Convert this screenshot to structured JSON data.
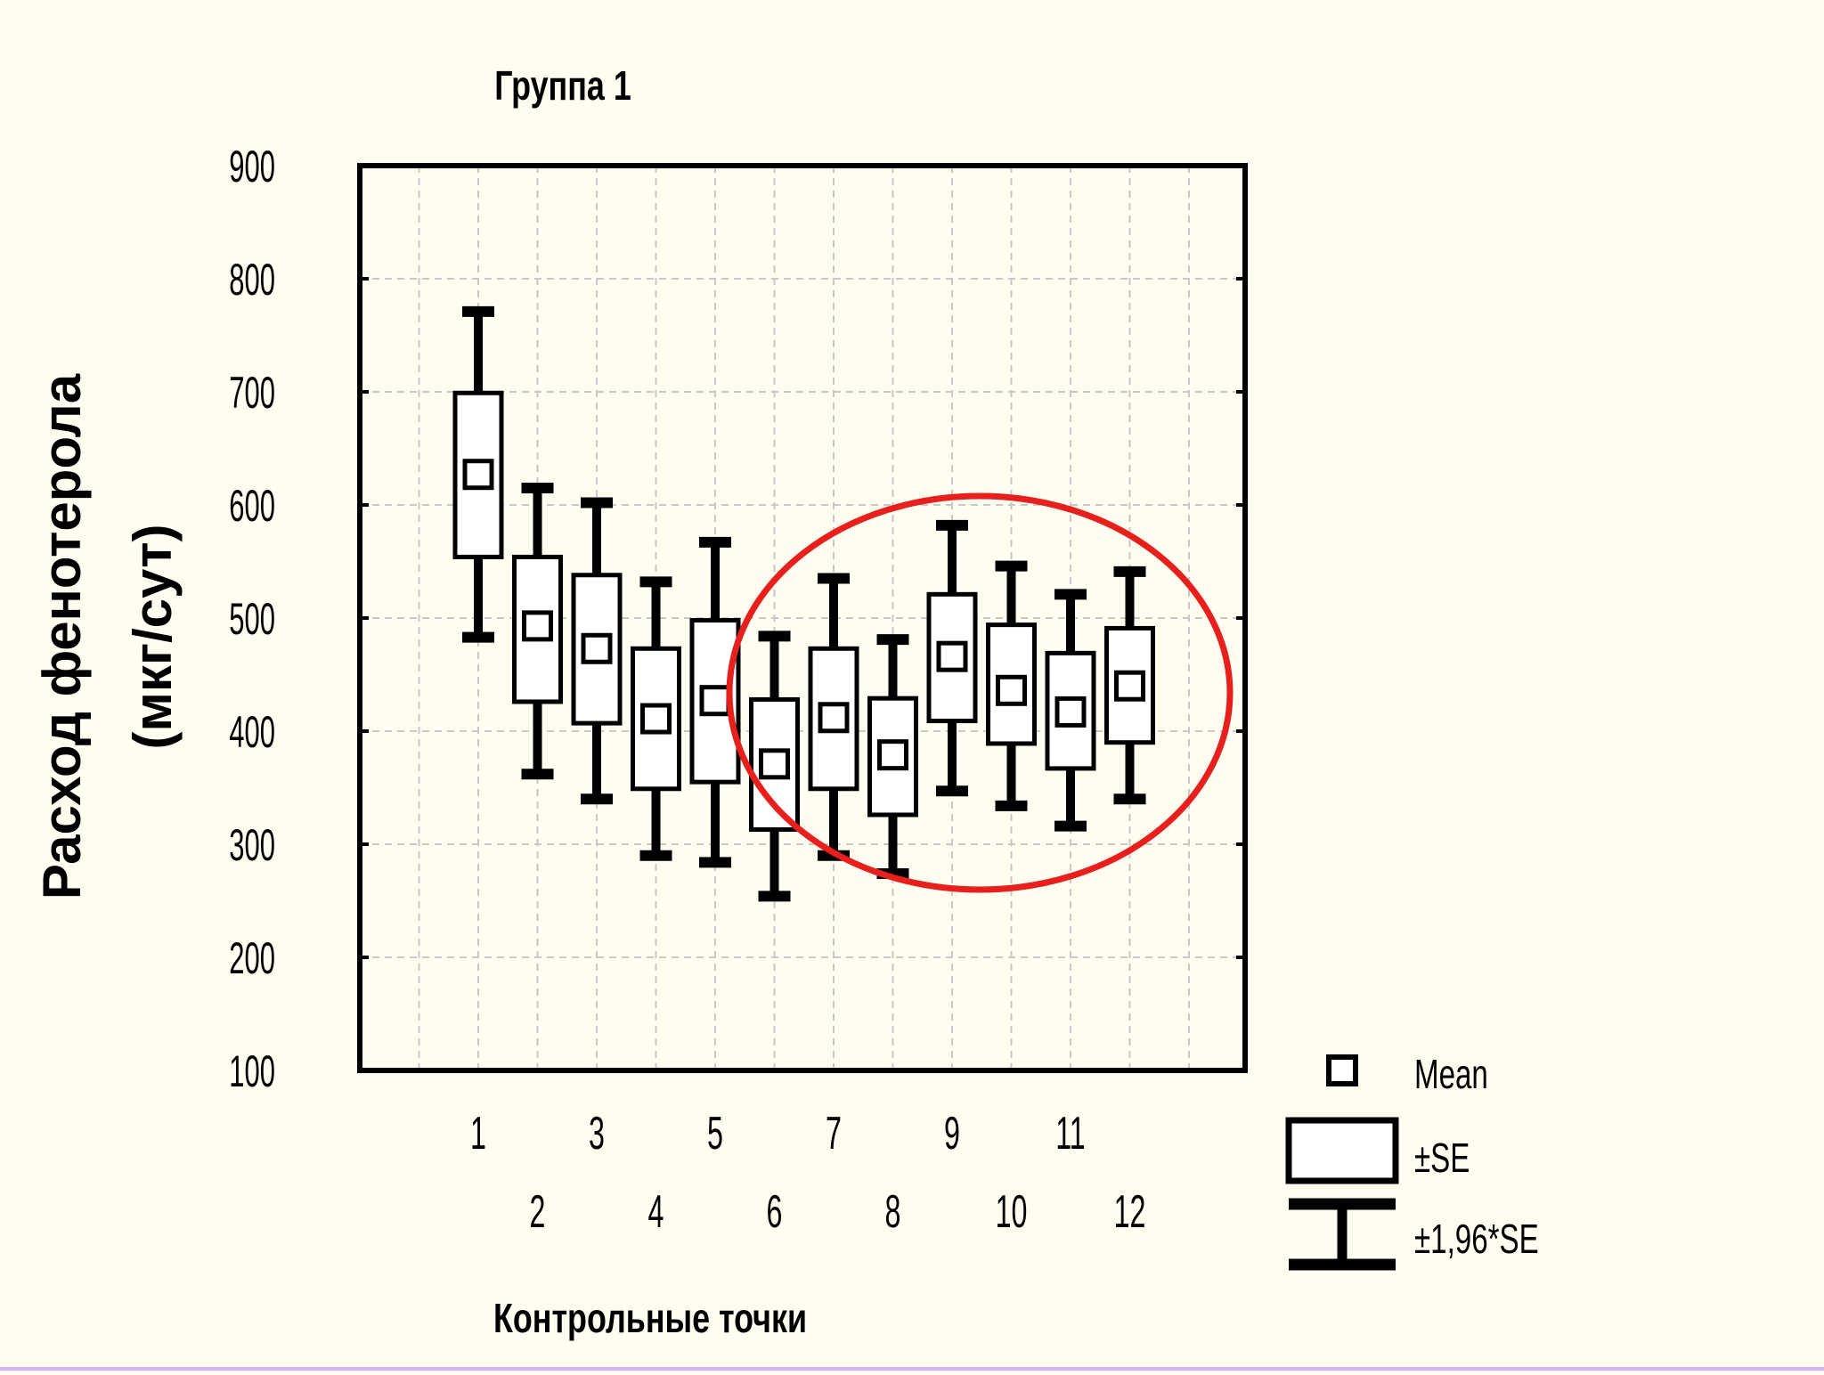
{
  "chart_data": {
    "type": "box",
    "title": "Группа 1",
    "xlabel": "Контрольные точки",
    "ylabel": "Расход фенотерола",
    "ylabel_line2": "(мкг/сут)",
    "categories": [
      "1",
      "2",
      "3",
      "4",
      "5",
      "6",
      "7",
      "8",
      "9",
      "10",
      "11",
      "12"
    ],
    "ylim": [
      100,
      900
    ],
    "yticks": [
      100,
      200,
      300,
      400,
      500,
      600,
      700,
      800,
      900
    ],
    "ytick_labels": [
      "100",
      "200",
      "300",
      "400",
      "500",
      "600",
      "700",
      "800",
      "900"
    ],
    "grid": true,
    "series": [
      {
        "mean": [
          627,
          493,
          473,
          411,
          427,
          371,
          412,
          379,
          466,
          436,
          417,
          440
        ],
        "se_low": [
          554,
          426,
          407,
          349,
          355,
          313,
          349,
          326,
          409,
          389,
          367,
          390
        ],
        "se_high": [
          699,
          554,
          538,
          473,
          498,
          428,
          473,
          429,
          521,
          494,
          469,
          491
        ],
        "ci_low": [
          483,
          362,
          340,
          290,
          284,
          254,
          290,
          274,
          347,
          334,
          316,
          340
        ],
        "ci_high": [
          771,
          615,
          602,
          532,
          567,
          484,
          535,
          481,
          582,
          546,
          521,
          541
        ]
      }
    ],
    "annotation": {
      "shape": "ellipse",
      "color": "#e8201d",
      "encloses_categories": [
        "6",
        "7",
        "8",
        "9",
        "10",
        "11",
        "12"
      ]
    },
    "legend": {
      "placement": "bottom-right",
      "items": [
        {
          "symbol": "mean-square",
          "label": "Mean"
        },
        {
          "symbol": "se-box",
          "label": "±SE"
        },
        {
          "symbol": "ci-whisker",
          "label": "±1,96*SE"
        }
      ]
    }
  }
}
